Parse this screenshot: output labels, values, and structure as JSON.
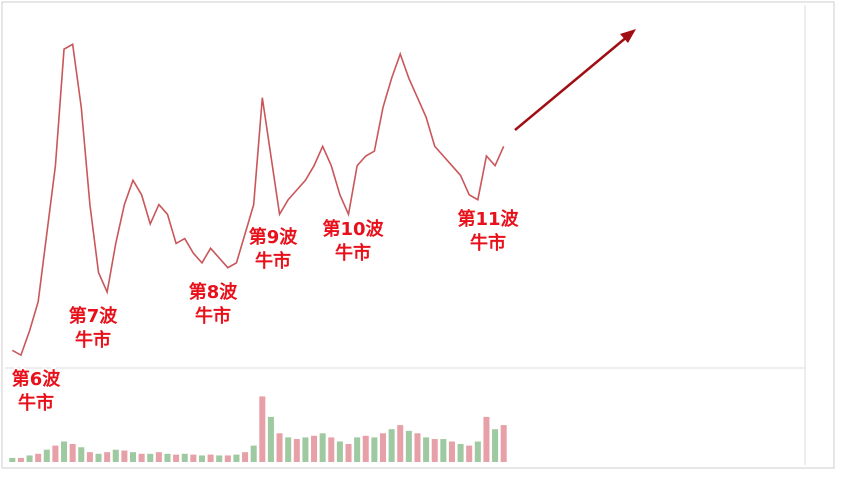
{
  "chart_data": {
    "type": "line",
    "categories": [
      null,
      null,
      null,
      null,
      null,
      null,
      null,
      null,
      null,
      null,
      null,
      null,
      null,
      null,
      null,
      null,
      null,
      null,
      null,
      null,
      null,
      null,
      null,
      null,
      null,
      null,
      null,
      null,
      null,
      null,
      null,
      null,
      null,
      null,
      null,
      null,
      null,
      null,
      null,
      null,
      null,
      null,
      null,
      null,
      null,
      null,
      null,
      null,
      null,
      null,
      null,
      null,
      null,
      null,
      null,
      null,
      null,
      null
    ],
    "series": [
      {
        "color": "#c9565a",
        "values": [
          10,
          5,
          30,
          60,
          130,
          200,
          320,
          325,
          260,
          160,
          90,
          70,
          120,
          160,
          185,
          170,
          140,
          160,
          150,
          120,
          125,
          110,
          100,
          115,
          105,
          95,
          100,
          130,
          160,
          270,
          210,
          150,
          165,
          175,
          185,
          200,
          220,
          200,
          170,
          150,
          200,
          210,
          215,
          260,
          290,
          315,
          290,
          270,
          250,
          220,
          210,
          200,
          190,
          170,
          165,
          210,
          200,
          220
        ]
      },
      {
        "color": "#e8a0a8",
        "values": [
          5,
          5,
          8,
          10,
          15,
          20,
          25,
          22,
          18,
          12,
          10,
          12,
          15,
          14,
          12,
          10,
          10,
          12,
          10,
          9,
          10,
          9,
          8,
          9,
          8,
          8,
          9,
          12,
          20,
          80,
          55,
          35,
          30,
          28,
          30,
          32,
          35,
          30,
          25,
          22,
          30,
          32,
          30,
          35,
          40,
          45,
          38,
          35,
          30,
          28,
          28,
          25,
          22,
          20,
          25,
          55,
          40,
          45
        ]
      }
    ],
    "ylim": [
      0,
      350
    ],
    "y2lim": [
      0,
      100
    ],
    "annotations": [
      [
        "第6波",
        "牛市"
      ],
      [
        "第7波",
        "牛市"
      ],
      [
        "第8波",
        "牛市"
      ],
      [
        "第9波",
        "牛市"
      ],
      [
        "第10波",
        "牛市"
      ],
      [
        "第11波",
        "牛市"
      ]
    ]
  }
}
